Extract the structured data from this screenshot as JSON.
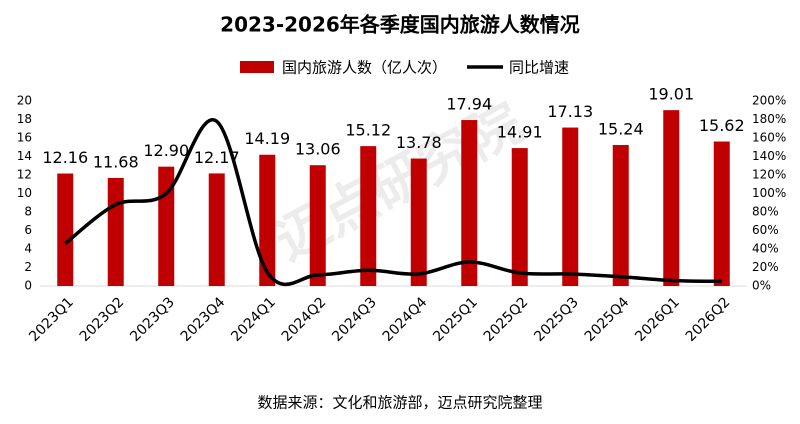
{
  "chart_data": {
    "type": "bar",
    "title": "2023-2026年各季度国内旅游人数情况",
    "source": "数据来源：文化和旅游部，迈点研究院整理",
    "watermark": "迈点研究院",
    "categories": [
      "2023Q1",
      "2023Q2",
      "2023Q3",
      "2023Q4",
      "2024Q1",
      "2024Q2",
      "2024Q3",
      "2024Q4",
      "2025Q1",
      "2025Q2",
      "2025Q3",
      "2025Q4",
      "2026Q1",
      "2026Q2"
    ],
    "series": [
      {
        "name": "国内旅游人数（亿人次）",
        "type": "bar",
        "color": "#c00000",
        "values": [
          12.16,
          11.68,
          12.9,
          12.17,
          14.19,
          13.06,
          15.12,
          13.78,
          17.94,
          14.91,
          17.13,
          15.24,
          19.01,
          15.62
        ],
        "value_labels": [
          "12.16",
          "11.68",
          "12.90",
          "12.17",
          "14.19",
          "13.06",
          "15.12",
          "13.78",
          "17.94",
          "14.91",
          "17.13",
          "15.24",
          "19.01",
          "15.62"
        ]
      },
      {
        "name": "同比增速",
        "type": "line",
        "axis": "y2",
        "color": "#000000",
        "values": [
          46,
          88,
          100,
          178,
          15,
          12,
          17,
          13,
          26,
          14,
          13,
          10,
          6,
          5
        ]
      }
    ],
    "ylim": [
      0,
      20
    ],
    "yticks": [
      0,
      2,
      4,
      6,
      8,
      10,
      12,
      14,
      16,
      18,
      20
    ],
    "y2lim": [
      0,
      200
    ],
    "y2ticks": [
      {
        "value": 0,
        "label": "0%"
      },
      {
        "value": 20,
        "label": "20%"
      },
      {
        "value": 40,
        "label": "40%"
      },
      {
        "value": 60,
        "label": "60%"
      },
      {
        "value": 80,
        "label": "80%"
      },
      {
        "value": 100,
        "label": "100%"
      },
      {
        "value": 120,
        "label": "120%"
      },
      {
        "value": 140,
        "label": "140%"
      },
      {
        "value": 160,
        "label": "160%"
      },
      {
        "value": 180,
        "label": "180%"
      },
      {
        "value": 200,
        "label": "200%"
      }
    ],
    "legend": "top",
    "grid": false
  }
}
